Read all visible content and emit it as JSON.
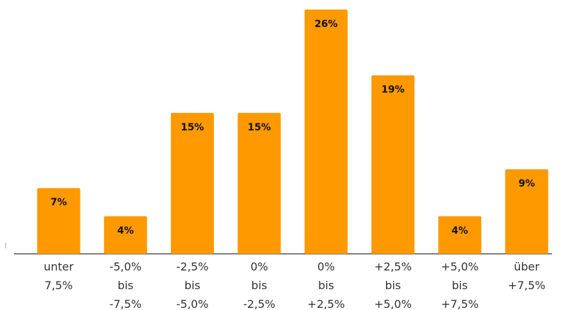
{
  "chart_data": {
    "type": "bar",
    "categories": [
      [
        "unter",
        "7,5%"
      ],
      [
        "-5,0%",
        "bis",
        "-7,5%"
      ],
      [
        "-2,5%",
        "bis",
        "-5,0%"
      ],
      [
        "0%",
        "bis",
        "-2,5%"
      ],
      [
        "0%",
        "bis",
        "+2,5%"
      ],
      [
        "+2,5%",
        "bis",
        "+5,0%"
      ],
      [
        "+5,0%",
        "bis",
        "+7,5%"
      ],
      [
        "über",
        "+7,5%"
      ]
    ],
    "values": [
      7,
      4,
      15,
      15,
      26,
      19,
      4,
      9
    ],
    "data_labels": [
      "7%",
      "4%",
      "15%",
      "15%",
      "26%",
      "19%",
      "4%",
      "9%"
    ],
    "title": "",
    "xlabel": "",
    "ylabel": "",
    "ylim": [
      0,
      26.5
    ],
    "grid": false,
    "legend": "none",
    "colors": {
      "bar": "#FF9900",
      "axis": "#555555",
      "text": "#333333",
      "label": "#111111"
    }
  }
}
